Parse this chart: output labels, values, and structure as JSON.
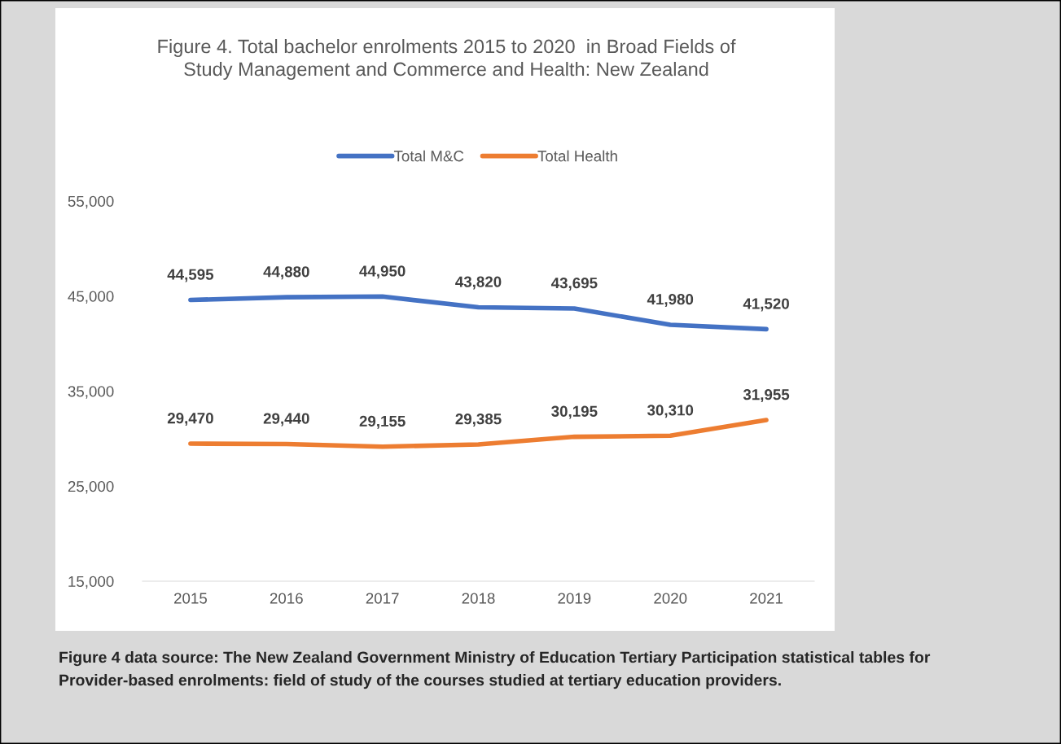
{
  "chart_data": {
    "type": "line",
    "title": "Figure 4. Total bachelor enrolments 2015 to 2020  in Broad Fields of Study Management and Commerce and Health: New Zealand",
    "categories": [
      "2015",
      "2016",
      "2017",
      "2018",
      "2019",
      "2020",
      "2021"
    ],
    "series": [
      {
        "name": "Total M&C",
        "color": "#4472c4",
        "values": [
          44595,
          44880,
          44950,
          43820,
          43695,
          41980,
          41520
        ],
        "value_labels": [
          "44,595",
          "44,880",
          "44,950",
          "43,820",
          "43,695",
          "41,980",
          "41,520"
        ]
      },
      {
        "name": "Total Health",
        "color": "#ed7d31",
        "values": [
          29470,
          29440,
          29155,
          29385,
          30195,
          30310,
          31955
        ],
        "value_labels": [
          "29,470",
          "29,440",
          "29,155",
          "29,385",
          "30,195",
          "30,310",
          "31,955"
        ]
      }
    ],
    "ylim": [
      15000,
      55000
    ],
    "yticks": [
      {
        "value": 15000,
        "label": "15,000"
      },
      {
        "value": 25000,
        "label": "25,000"
      },
      {
        "value": 35000,
        "label": "35,000"
      },
      {
        "value": 45000,
        "label": "45,000"
      },
      {
        "value": 55000,
        "label": "55,000"
      }
    ],
    "legend": "top",
    "grid": false,
    "marker": "none",
    "line_style": "solid",
    "annotations": [
      "Figure 4 data source: The New Zealand Government Ministry of Education Tertiary Participation statistical tables for Provider-based enrolments: field of study of the courses studied at tertiary education providers."
    ]
  }
}
